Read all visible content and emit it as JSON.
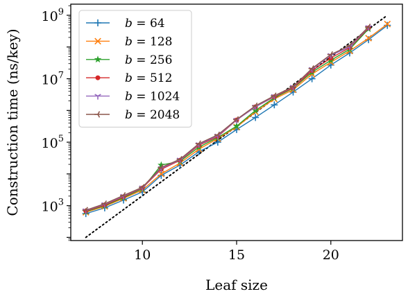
{
  "chart_data": {
    "type": "line",
    "title": "",
    "xlabel": "Leaf size",
    "ylabel": "Construction time (ns/key)",
    "yscale": "log",
    "xlim": [
      6.2,
      23.8
    ],
    "ylim_exp": [
      1.9,
      9.35
    ],
    "xticks": [
      10,
      15,
      20
    ],
    "xtick_labels": [
      "10",
      "15",
      "20"
    ],
    "yticks_exp": [
      3,
      5,
      7,
      9
    ],
    "ytick_base": "10",
    "grid": false,
    "legend_position": "top-left",
    "series": [
      {
        "name": "b = 64",
        "legend_var": "b",
        "legend_value": "= 64",
        "color": "#1f77b4",
        "marker": "plus",
        "x": [
          7,
          8,
          9,
          10,
          11,
          12,
          13,
          14,
          15,
          16,
          17,
          18,
          19,
          20,
          21,
          22,
          23
        ],
        "y": [
          560,
          850,
          1500,
          2700,
          9000,
          19000,
          50000,
          100000,
          250000,
          600000,
          1500000,
          3800000,
          10000000,
          27000000,
          65000000,
          170000000,
          480000000
        ]
      },
      {
        "name": "b = 128",
        "legend_var": "b",
        "legend_value": "= 128",
        "color": "#ff7f0e",
        "marker": "x",
        "x": [
          7,
          8,
          9,
          10,
          11,
          12,
          13,
          14,
          15,
          16,
          17,
          18,
          19,
          20,
          21,
          22,
          23
        ],
        "y": [
          620,
          950,
          1700,
          3100,
          10000,
          22000,
          60000,
          130000,
          300000,
          900000,
          2300000,
          4500000,
          14000000,
          33000000,
          75000000,
          190000000,
          530000000
        ]
      },
      {
        "name": "b = 256",
        "legend_var": "b",
        "legend_value": "= 256",
        "color": "#2ca02c",
        "marker": "star",
        "x": [
          7,
          8,
          9,
          10,
          11,
          12,
          13,
          14,
          15,
          16,
          17,
          18,
          19,
          20,
          21,
          22
        ],
        "y": [
          650,
          1000,
          1800,
          3400,
          19000,
          25000,
          70000,
          140000,
          320000,
          1000000,
          2500000,
          5000000,
          16000000,
          38000000,
          85000000,
          370000000
        ]
      },
      {
        "name": "b = 512",
        "legend_var": "b",
        "legend_value": "= 512",
        "color": "#d62728",
        "marker": "circle",
        "x": [
          7,
          8,
          9,
          10,
          11,
          12,
          13,
          14,
          15,
          16,
          17,
          18,
          19,
          20,
          21,
          22
        ],
        "y": [
          680,
          1050,
          1900,
          3600,
          14000,
          27000,
          80000,
          150000,
          500000,
          1300000,
          2700000,
          5200000,
          18000000,
          45000000,
          95000000,
          400000000
        ]
      },
      {
        "name": "b = 1024",
        "legend_var": "b",
        "legend_value": "= 1024",
        "color": "#9467bd",
        "marker": "tri_down",
        "x": [
          7,
          8,
          9,
          10,
          11,
          12,
          13,
          14,
          15,
          16,
          17,
          18,
          19,
          20,
          21,
          22
        ],
        "y": [
          700,
          1100,
          2000,
          3700,
          15000,
          28000,
          85000,
          160000,
          500000,
          1300000,
          2800000,
          5500000,
          20000000,
          55000000,
          100000000,
          420000000
        ]
      },
      {
        "name": "b = 2048",
        "legend_var": "b",
        "legend_value": "= 2048",
        "color": "#8c564b",
        "marker": "tri_left",
        "x": [
          7,
          8,
          9,
          10,
          11,
          12,
          13,
          14,
          15,
          16,
          17,
          18,
          19,
          20,
          21,
          22
        ],
        "y": [
          720,
          1150,
          2100,
          3800,
          16000,
          29000,
          90000,
          170000,
          520000,
          1400000,
          2900000,
          5600000,
          21000000,
          58000000,
          110000000,
          430000000
        ]
      }
    ],
    "reference_line": {
      "style": "dotted",
      "color": "#000000",
      "x": [
        7,
        23
      ],
      "y": [
        100,
        1000000000
      ]
    }
  }
}
